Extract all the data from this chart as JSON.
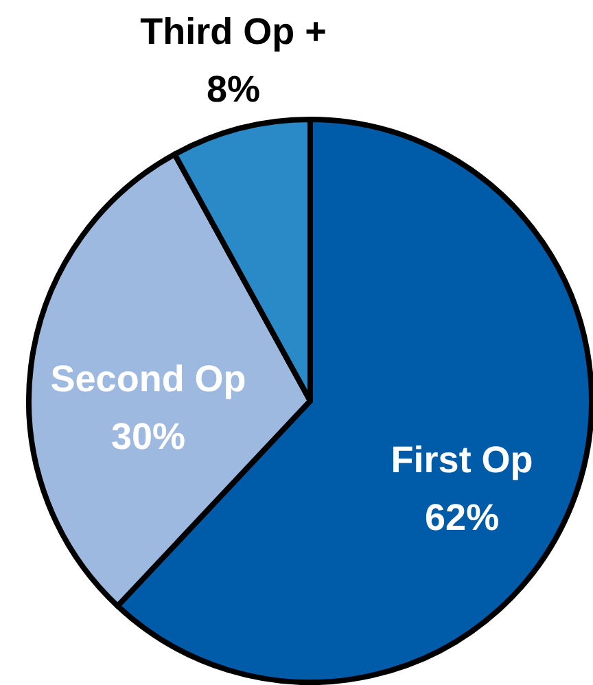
{
  "chart_data": {
    "type": "pie",
    "categories": [
      "First Op",
      "Second Op",
      "Third Op +"
    ],
    "values": [
      62,
      30,
      8
    ],
    "colors": [
      "#005ba8",
      "#9db9e0",
      "#2a8ac8"
    ],
    "value_labels": [
      "62%",
      "30%",
      "8%"
    ]
  }
}
